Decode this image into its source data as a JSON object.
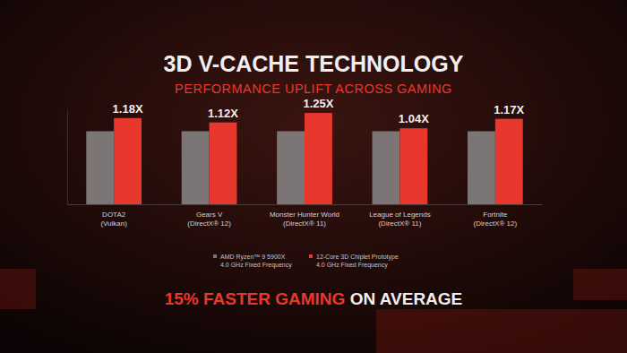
{
  "chart_data": {
    "type": "bar",
    "title": "3D V-CACHE TECHNOLOGY",
    "subtitle": "PERFORMANCE UPLIFT ACROSS GAMING",
    "categories": [
      "DOTA2\n(Vulkan)",
      "Gears V\n(DirectX® 12)",
      "Monster Hunter World\n(DirectX® 11)",
      "League of Legends\n(DirectX® 11)",
      "Fortnite\n(DirectX® 12)"
    ],
    "series": [
      {
        "name": "AMD Ryzen™ 9 5900X\n4.0 GHz Fixed Frequency",
        "color": "#7b7576",
        "values": [
          1.0,
          1.0,
          1.0,
          1.0,
          1.0
        ]
      },
      {
        "name": "12-Core 3D Chiplet Prototype\n4.0 GHz Fixed Frequency",
        "color": "#e8382d",
        "values": [
          1.18,
          1.12,
          1.25,
          1.04,
          1.17
        ],
        "value_labels": [
          "1.18X",
          "1.12X",
          "1.25X",
          "1.04X",
          "1.17X"
        ]
      }
    ],
    "ylim": [
      0,
      1.3
    ],
    "tick_labels": "x",
    "data_labels": true,
    "legend": "bottom",
    "annotation": [
      "15% FASTER GAMING",
      "ON AVERAGE"
    ]
  }
}
